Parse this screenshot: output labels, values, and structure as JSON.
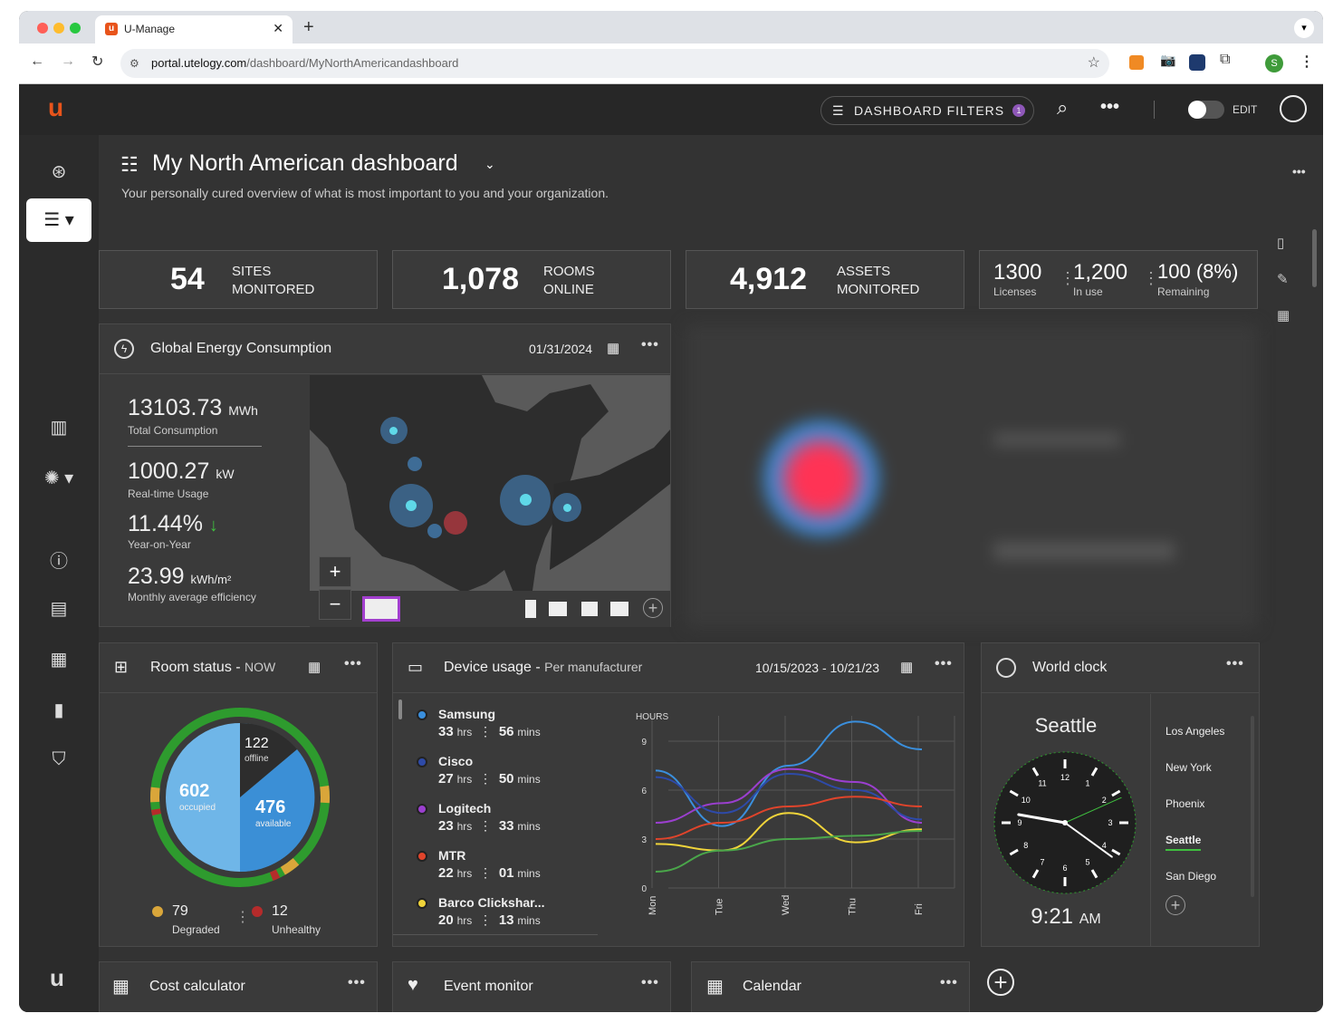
{
  "browser": {
    "tab_title": "U-Manage",
    "favicon_letter": "u",
    "url_host": "portal.utelogy.com",
    "url_path": "/dashboard/MyNorthAmericandashboard",
    "profile_letter": "S"
  },
  "topbar": {
    "logo": "u",
    "filters_label": "DASHBOARD FILTERS",
    "filters_count": "1",
    "edit_label": "EDIT"
  },
  "header": {
    "title": "My North American dashboard",
    "subtitle": "Your personally cured overview of what is most important to you and your organization."
  },
  "stats": {
    "sites": {
      "value": "54",
      "label1": "SITES",
      "label2": "MONITORED"
    },
    "rooms": {
      "value": "1,078",
      "label1": "ROOMS",
      "label2": "ONLINE"
    },
    "assets": {
      "value": "4,912",
      "label1": "ASSETS",
      "label2": "MONITORED"
    },
    "licenses": {
      "total": "1300",
      "total_label": "Licenses",
      "in_use": "1,200",
      "in_use_label": "In use",
      "remaining": "100 (8%)",
      "remaining_label": "Remaining"
    }
  },
  "energy": {
    "title": "Global Energy Consumption",
    "date": "01/31/2024",
    "total_value": "13103.73",
    "total_unit": "MWh",
    "total_label": "Total Consumption",
    "realtime_value": "1000.27",
    "realtime_unit": "kW",
    "realtime_label": "Real-time Usage",
    "yoy_value": "11.44%",
    "yoy_label": "Year-on-Year",
    "eff_value": "23.99",
    "eff_unit": "kWh/m²",
    "eff_label": "Monthly average efficiency",
    "zoom_in": "+",
    "zoom_out": "−"
  },
  "room_status": {
    "title": "Room status -",
    "period": "NOW",
    "occupied": "602",
    "occupied_label": "occupied",
    "available": "476",
    "available_label": "available",
    "offline": "122",
    "offline_label": "offline",
    "degraded": "79",
    "degraded_label": "Degraded",
    "unhealthy": "12",
    "unhealthy_label": "Unhealthy"
  },
  "device_usage": {
    "title": "Device usage -",
    "subtitle": "Per manufacturer",
    "date_range": "10/15/2023 - 10/21/23",
    "hrs_unit": "hrs",
    "mins_unit": "mins",
    "items": [
      {
        "name": "Samsung",
        "hrs": "33",
        "mins": "56",
        "color": "#3a8fdd"
      },
      {
        "name": "Cisco",
        "hrs": "27",
        "mins": "50",
        "color": "#2e4aa8"
      },
      {
        "name": "Logitech",
        "hrs": "23",
        "mins": "33",
        "color": "#9b3fcf"
      },
      {
        "name": "MTR",
        "hrs": "22",
        "mins": "01",
        "color": "#e0442b"
      },
      {
        "name": "Barco Clickshar...",
        "hrs": "20",
        "mins": "13",
        "color": "#f0d43a"
      }
    ]
  },
  "chart_data": {
    "type": "line",
    "ylabel": "HOURS",
    "categories": [
      "Mon",
      "Tue",
      "Wed",
      "Thu",
      "Fri"
    ],
    "ylim": [
      0,
      10
    ],
    "yticks": [
      "0",
      "3",
      "6",
      "9"
    ],
    "series": [
      {
        "color": "#3a8fdd",
        "values": [
          7.2,
          3.8,
          7.5,
          10.2,
          8.5
        ]
      },
      {
        "color": "#9b3fcf",
        "values": [
          4.0,
          5.2,
          7.3,
          6.5,
          4.0
        ]
      },
      {
        "color": "#2e4aa8",
        "values": [
          6.8,
          4.6,
          7.0,
          6.0,
          4.2
        ]
      },
      {
        "color": "#e0442b",
        "values": [
          3.0,
          4.0,
          5.0,
          5.6,
          5.0
        ]
      },
      {
        "color": "#f0d43a",
        "values": [
          2.7,
          2.3,
          4.6,
          2.8,
          3.6
        ]
      },
      {
        "color": "#4aa64a",
        "values": [
          1.0,
          2.3,
          3.0,
          3.2,
          3.5
        ]
      }
    ]
  },
  "world_clock": {
    "title": "World clock",
    "city": "Seattle",
    "time": "9:21",
    "ampm": "AM",
    "cities": [
      "Los Angeles",
      "New York",
      "Phoenix",
      "Seattle",
      "San Diego"
    ],
    "numerals": [
      "12",
      "1",
      "2",
      "3",
      "4",
      "5",
      "6",
      "7",
      "8",
      "9",
      "10",
      "11"
    ]
  },
  "bottom_cards": {
    "cost": "Cost calculator",
    "event": "Event monitor",
    "calendar": "Calendar"
  }
}
